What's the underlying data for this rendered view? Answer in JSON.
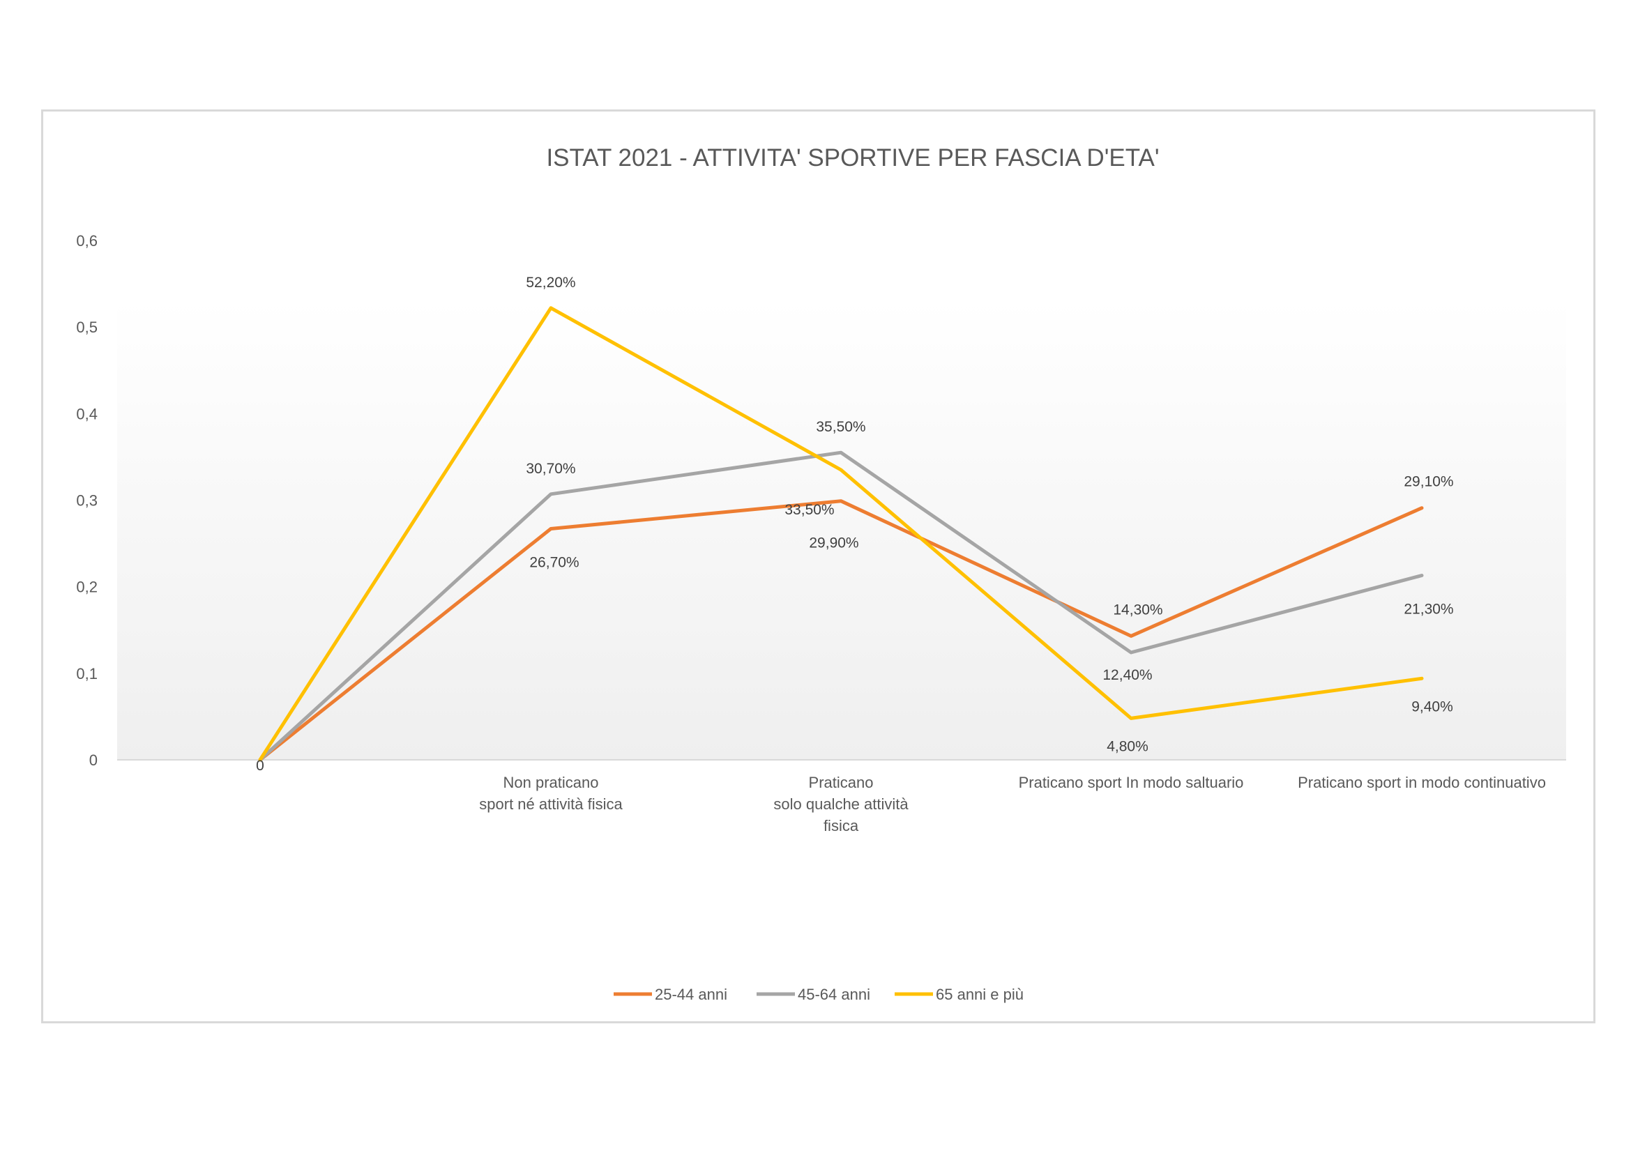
{
  "chart_data": {
    "type": "line",
    "title": "ISTAT 2021 - ATTIVITA' SPORTIVE PER FASCIA D'ETA'",
    "ylim": [
      0,
      0.6
    ],
    "yticks": [
      "0",
      "0,1",
      "0,2",
      "0,3",
      "0,4",
      "0,5",
      "0,6"
    ],
    "categories": [
      "",
      "Non praticano\nsport né attività fisica",
      "Praticano\nsolo qualche attività\nfisica",
      "Praticano sport In modo saltuario",
      "Praticano sport in modo continuativo"
    ],
    "grid": false,
    "legend_position": "bottom",
    "series": [
      {
        "name": "25-44 anni",
        "color": "#ED7D31",
        "values": [
          0,
          0.267,
          0.299,
          0.143,
          0.291
        ],
        "labels": [
          "0",
          "26,70%",
          "29,90%",
          "14,30%",
          "29,10%"
        ]
      },
      {
        "name": "45-64 anni",
        "color": "#A5A5A5",
        "values": [
          0,
          0.307,
          0.355,
          0.124,
          0.213
        ],
        "labels": [
          "",
          "30,70%",
          "35,50%",
          "12,40%",
          "21,30%"
        ]
      },
      {
        "name": "65 anni e più",
        "color": "#FFC000",
        "values": [
          0,
          0.522,
          0.335,
          0.048,
          0.094
        ],
        "labels": [
          "",
          "52,20%",
          "33,50%",
          "4,80%",
          "9,40%"
        ]
      }
    ]
  }
}
